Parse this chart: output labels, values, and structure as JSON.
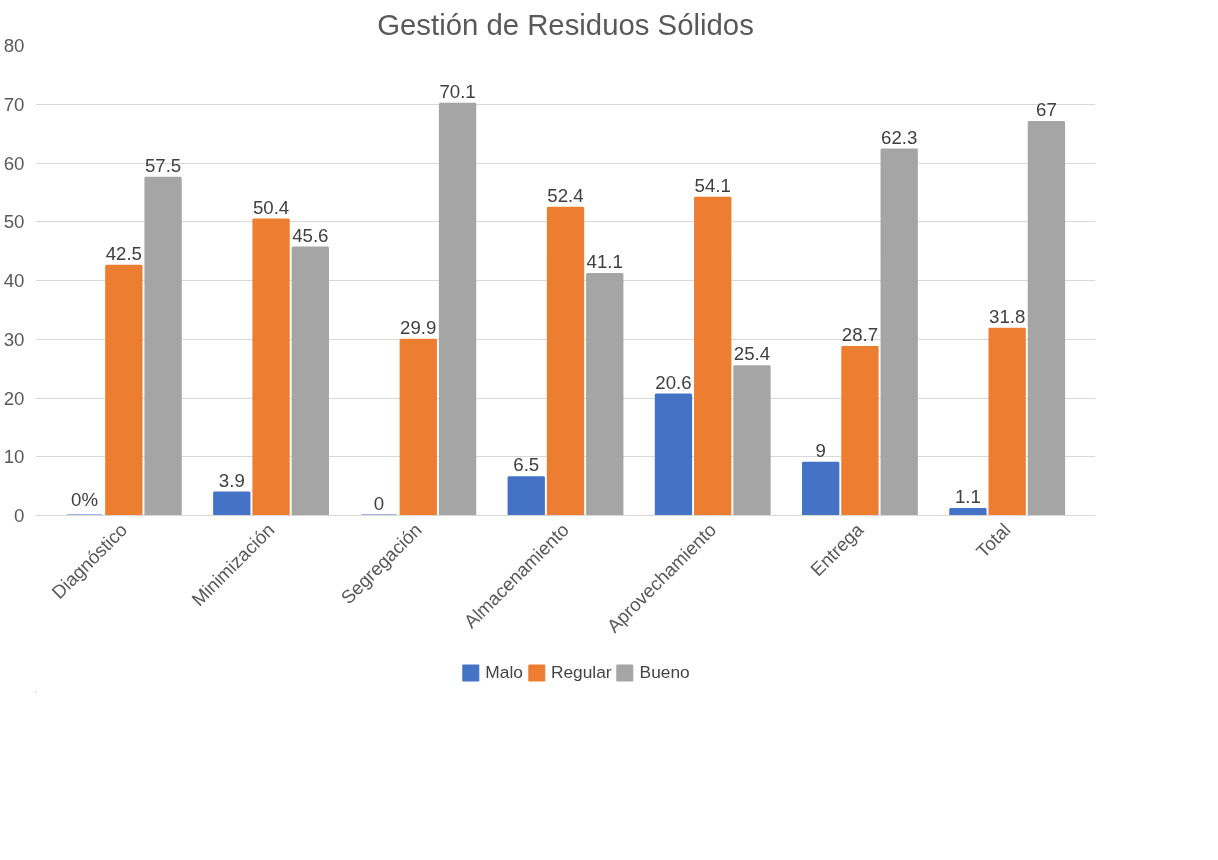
{
  "chart_data": {
    "type": "bar",
    "title": "Gestión de Residuos Sólidos",
    "categories": [
      "Diagnóstico",
      "Minimización",
      "Segregación",
      "Almacenamiento",
      "Aprovechamiento",
      "Entrega",
      "Total"
    ],
    "series": [
      {
        "name": "Malo",
        "color": "#4472c4",
        "values": [
          0,
          3.9,
          0,
          6.5,
          20.6,
          9,
          1.1
        ],
        "value_labels": [
          "0%",
          "3.9",
          "0",
          "6.5",
          "20.6",
          "9",
          "1.1"
        ]
      },
      {
        "name": "Regular",
        "color": "#ed7d31",
        "values": [
          42.5,
          50.4,
          29.9,
          52.4,
          54.1,
          28.7,
          31.8
        ],
        "value_labels": [
          "42.5",
          "50.4",
          "29.9",
          "52.4",
          "54.1",
          "28.7",
          "31.8"
        ]
      },
      {
        "name": "Bueno",
        "color": "#a5a5a5",
        "values": [
          57.5,
          45.6,
          70.1,
          41.1,
          25.4,
          62.3,
          67
        ],
        "value_labels": [
          "57.5",
          "45.6",
          "70.1",
          "41.1",
          "25.4",
          "62.3",
          "67"
        ]
      }
    ],
    "ylim": [
      0,
      80
    ],
    "yticks": [
      0,
      10,
      20,
      30,
      40,
      50,
      60,
      70,
      80
    ],
    "grid": "y",
    "legend": "bottom"
  }
}
